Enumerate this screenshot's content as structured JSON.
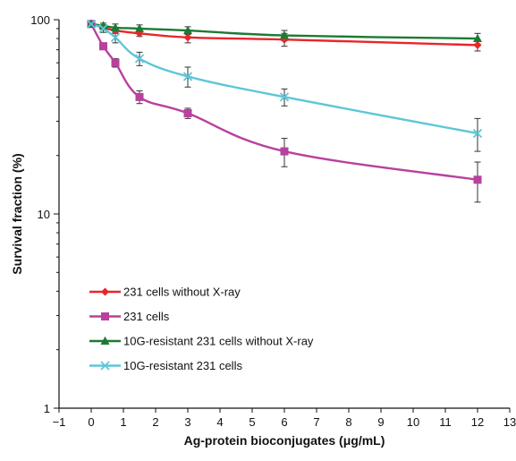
{
  "chart_data": {
    "type": "line",
    "title": "",
    "xlabel": "Ag-protein bioconjugates (μg/mL)",
    "ylabel": "Survival fraction (%)",
    "x_scale": "linear",
    "y_scale": "log",
    "xlim": [
      -1,
      13
    ],
    "ylim": [
      1,
      100
    ],
    "x_ticks": [
      -1,
      0,
      1,
      2,
      3,
      4,
      5,
      6,
      7,
      8,
      9,
      10,
      11,
      12,
      13
    ],
    "x_tick_labels": [
      "−1",
      "0",
      "1",
      "2",
      "3",
      "4",
      "5",
      "6",
      "7",
      "8",
      "9",
      "10",
      "11",
      "12",
      "13"
    ],
    "y_ticks": [
      1,
      10,
      100
    ],
    "y_tick_labels": [
      "1",
      "10",
      "100"
    ],
    "grid": false,
    "legend_position": "lower-left",
    "series": [
      {
        "name": "231 cells without X-ray",
        "color": "#e8262a",
        "marker": "diamond",
        "x": [
          0,
          0.375,
          0.75,
          1.5,
          3,
          6,
          12
        ],
        "y": [
          95,
          91,
          88,
          85,
          81,
          79,
          74
        ],
        "err": [
          0,
          3,
          3,
          3,
          5,
          6,
          5
        ]
      },
      {
        "name": "231 cells",
        "color": "#b8419e",
        "marker": "square",
        "x": [
          0,
          0.375,
          0.75,
          1.5,
          3,
          6,
          12
        ],
        "y": [
          95,
          73,
          60,
          40,
          33,
          21,
          15
        ],
        "err": [
          0,
          3,
          3,
          3,
          2,
          3.5,
          3.5
        ]
      },
      {
        "name": "10G-resistant 231 cells without X-ray",
        "color": "#1d7a33",
        "marker": "triangle",
        "x": [
          0,
          0.375,
          0.75,
          1.5,
          3,
          6,
          12
        ],
        "y": [
          95,
          93,
          91,
          90,
          88,
          83,
          80
        ],
        "err": [
          0,
          3,
          4,
          4,
          4,
          5,
          5
        ]
      },
      {
        "name": "10G-resistant 231 cells",
        "color": "#5ec6d8",
        "marker": "x",
        "x": [
          0,
          0.375,
          0.75,
          1.5,
          3,
          6,
          12
        ],
        "y": [
          95,
          90,
          81,
          63,
          51,
          40,
          26
        ],
        "err": [
          0,
          4,
          5,
          5,
          6,
          4,
          5
        ]
      }
    ]
  }
}
